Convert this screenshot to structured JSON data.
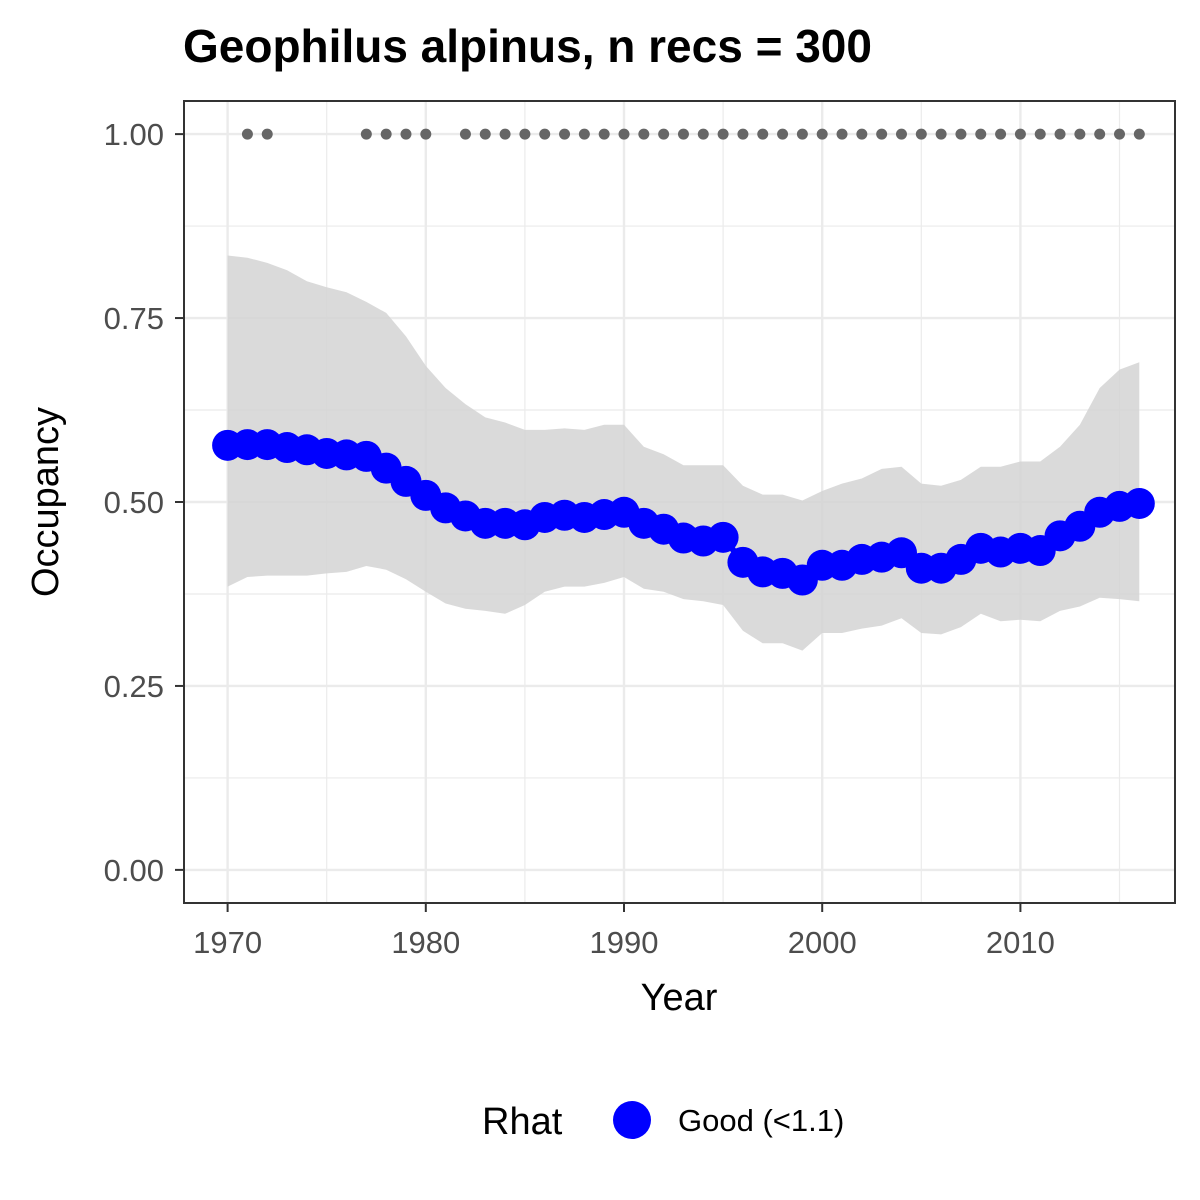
{
  "chart_data": {
    "type": "line",
    "title": "Geophilus alpinus, n recs = 300",
    "xlabel": "Year",
    "ylabel": "Occupancy",
    "xlim": [
      1967.8,
      2017.8
    ],
    "ylim": [
      -0.045,
      1.045
    ],
    "x_ticks": [
      1970,
      1980,
      1990,
      2000,
      2010
    ],
    "x_tick_labels": [
      "1970",
      "1980",
      "1990",
      "2000",
      "2010"
    ],
    "y_ticks": [
      0,
      0.25,
      0.5,
      0.75,
      1
    ],
    "y_tick_labels": [
      "0.00",
      "0.25",
      "0.50",
      "0.75",
      "1.00"
    ],
    "grid": true,
    "legend": {
      "position": "bottom",
      "title": "Rhat",
      "entries": [
        {
          "label": "Good (<1.1)",
          "color": "#0000ff"
        }
      ]
    },
    "colors": {
      "series": "#0000ff",
      "ribbon": "#d3d3d3",
      "record_points": "#666666",
      "panel_border": "#333333",
      "grid": "#ebebeb"
    },
    "series": [
      {
        "x": [
          1970,
          1971,
          1972,
          1973,
          1974,
          1975,
          1976,
          1977,
          1978,
          1979,
          1980,
          1981,
          1982,
          1983,
          1984,
          1985,
          1986,
          1987,
          1988,
          1989,
          1990,
          1991,
          1992,
          1993,
          1994,
          1995,
          1996,
          1997,
          1998,
          1999,
          2000,
          2001,
          2002,
          2003,
          2004,
          2005,
          2006,
          2007,
          2008,
          2009,
          2010,
          2011,
          2012,
          2013,
          2014,
          2015,
          2016
        ],
        "values": [
          0.577,
          0.578,
          0.578,
          0.574,
          0.571,
          0.566,
          0.564,
          0.562,
          0.546,
          0.528,
          0.509,
          0.492,
          0.481,
          0.471,
          0.471,
          0.469,
          0.479,
          0.482,
          0.479,
          0.483,
          0.486,
          0.471,
          0.463,
          0.451,
          0.447,
          0.452,
          0.418,
          0.405,
          0.403,
          0.394,
          0.414,
          0.414,
          0.422,
          0.425,
          0.431,
          0.41,
          0.41,
          0.422,
          0.437,
          0.432,
          0.437,
          0.434,
          0.454,
          0.467,
          0.486,
          0.494,
          0.498
        ],
        "lower": [
          0.385,
          0.398,
          0.4,
          0.4,
          0.4,
          0.403,
          0.405,
          0.413,
          0.408,
          0.395,
          0.378,
          0.362,
          0.355,
          0.352,
          0.348,
          0.36,
          0.378,
          0.385,
          0.385,
          0.39,
          0.398,
          0.382,
          0.378,
          0.368,
          0.365,
          0.36,
          0.325,
          0.308,
          0.308,
          0.298,
          0.322,
          0.322,
          0.328,
          0.332,
          0.342,
          0.322,
          0.32,
          0.33,
          0.348,
          0.338,
          0.34,
          0.338,
          0.352,
          0.358,
          0.37,
          0.368,
          0.365
        ],
        "upper": [
          0.835,
          0.832,
          0.825,
          0.815,
          0.8,
          0.792,
          0.785,
          0.772,
          0.757,
          0.725,
          0.685,
          0.655,
          0.633,
          0.615,
          0.608,
          0.598,
          0.598,
          0.6,
          0.598,
          0.605,
          0.605,
          0.575,
          0.565,
          0.55,
          0.55,
          0.55,
          0.522,
          0.51,
          0.51,
          0.502,
          0.515,
          0.525,
          0.532,
          0.545,
          0.548,
          0.525,
          0.522,
          0.53,
          0.548,
          0.548,
          0.555,
          0.555,
          0.575,
          0.605,
          0.655,
          0.68,
          0.69
        ]
      }
    ],
    "record_years": [
      1971,
      1972,
      1977,
      1978,
      1979,
      1980,
      1982,
      1983,
      1984,
      1985,
      1986,
      1987,
      1988,
      1989,
      1990,
      1991,
      1992,
      1993,
      1994,
      1995,
      1996,
      1997,
      1998,
      1999,
      2000,
      2001,
      2002,
      2003,
      2004,
      2005,
      2006,
      2007,
      2008,
      2009,
      2010,
      2011,
      2012,
      2013,
      2014,
      2015,
      2016
    ],
    "record_y": 1.0
  }
}
